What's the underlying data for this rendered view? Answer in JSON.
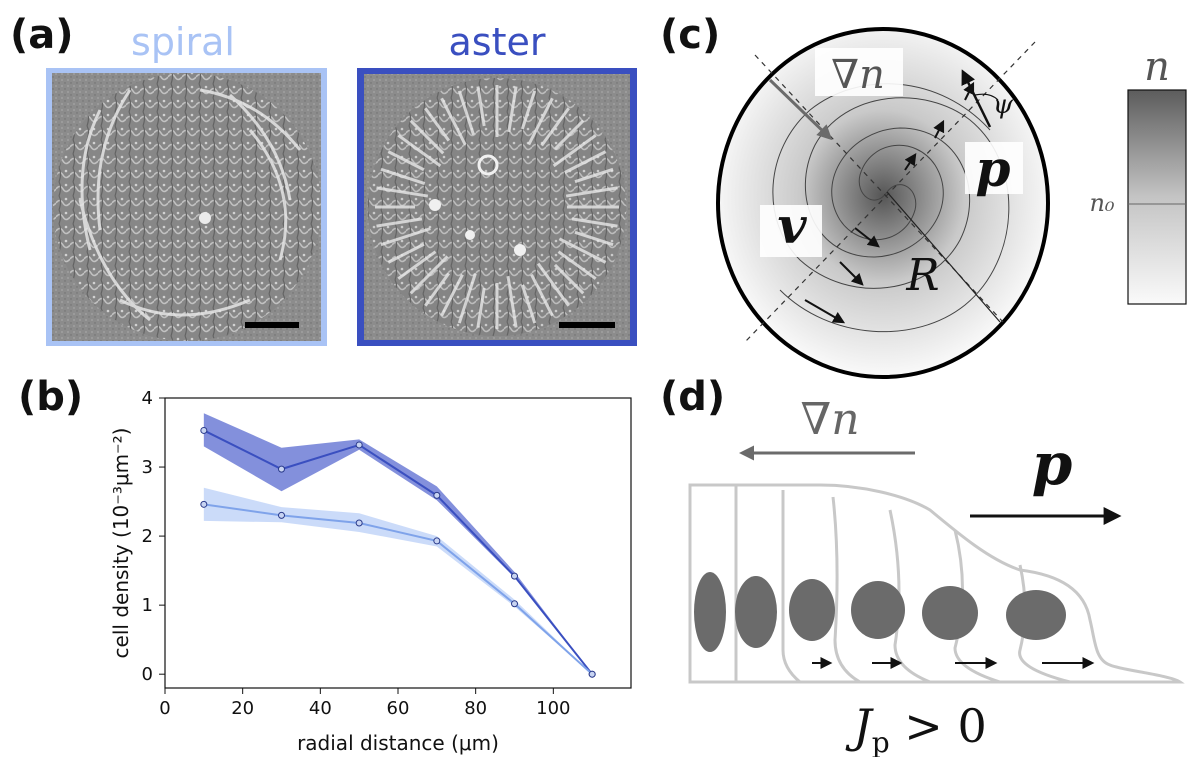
{
  "panels": {
    "a": {
      "label": "(a)",
      "left_title": "spiral",
      "right_title": "aster",
      "colors": {
        "spiral": "#a9c3f5",
        "aster": "#3a4fc0"
      }
    },
    "b": {
      "label": "(b)"
    },
    "c": {
      "label": "(c)",
      "grad_label": "∇n",
      "p_label": "p",
      "v_label": "v",
      "R_label": "R",
      "psi_label": "ψ",
      "colorbar_top": "n",
      "colorbar_mid": "n₀"
    },
    "d": {
      "label": "(d)",
      "grad_label": "∇n",
      "p_label": "p",
      "flux_label": "J",
      "flux_sub": "p",
      "flux_rel": " > 0"
    }
  },
  "chart_data": {
    "type": "line",
    "xlabel": "radial distance (μm)",
    "ylabel": "cell density (10⁻³μm⁻²)",
    "xlim": [
      0,
      120
    ],
    "ylim": [
      -0.2,
      4
    ],
    "xticks": [
      0,
      20,
      40,
      60,
      80,
      100
    ],
    "yticks": [
      0,
      1,
      2,
      3,
      4
    ],
    "grid": false,
    "x": [
      10,
      30,
      50,
      70,
      90,
      110
    ],
    "series": [
      {
        "color": "#3a4fc0",
        "band": "#5a6bd0",
        "values": [
          3.53,
          2.97,
          3.32,
          2.59,
          1.42,
          0.0
        ],
        "lower": [
          3.3,
          2.65,
          3.25,
          2.52,
          1.4,
          0.0
        ],
        "upper": [
          3.78,
          3.28,
          3.4,
          2.72,
          1.48,
          0.0
        ]
      },
      {
        "color": "#7fa3ea",
        "band": "#a9c3f5",
        "values": [
          2.46,
          2.3,
          2.19,
          1.93,
          1.02,
          0.0
        ],
        "lower": [
          2.22,
          2.2,
          2.06,
          1.85,
          0.98,
          0.0
        ],
        "upper": [
          2.7,
          2.42,
          2.33,
          2.0,
          1.08,
          0.0
        ]
      }
    ]
  }
}
